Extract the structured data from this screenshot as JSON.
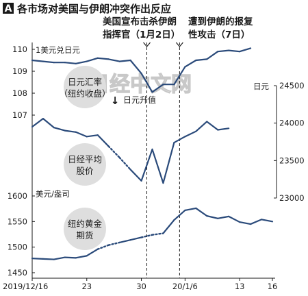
{
  "header": {
    "badge": "A",
    "title": "各市场对美国与伊朗冲突作出反应"
  },
  "events": [
    {
      "line1": "美国宣布击杀伊朗",
      "line2": "指挥官（1月2日）",
      "x_index": 10.5
    },
    {
      "line1": "遭到伊朗的报复",
      "line2": "性攻击（7日）",
      "x_index": 13.5
    }
  ],
  "watermark": "日经中文网",
  "x_axis": {
    "tick_labels": [
      "2019/12/16",
      "23",
      "30",
      "20/1/6",
      "13",
      "16"
    ],
    "tick_index": [
      0,
      5,
      10,
      14,
      19,
      22
    ]
  },
  "chart_data": [
    {
      "type": "line",
      "name": "日元汇率（纽约收盘）",
      "title": "1美元兑日元",
      "ylabel": "1美元兑日元",
      "axis_side": "left",
      "ylim": [
        107,
        110
      ],
      "yticks": [
        107,
        108,
        109,
        110
      ],
      "note_arrow": "↓",
      "note": "日元升值",
      "circle_label": [
        "日元汇率",
        "（纽约收盘）"
      ],
      "x_index": [
        0,
        1,
        2,
        3,
        4,
        5,
        6,
        7,
        8,
        9,
        10,
        11,
        12,
        13,
        14,
        15,
        16,
        17,
        18,
        19,
        20,
        21,
        22
      ],
      "values": [
        109.5,
        109.45,
        109.4,
        109.4,
        109.35,
        109.45,
        109.6,
        109.55,
        109.45,
        109.5,
        108.9,
        108.05,
        108.4,
        108.4,
        109.2,
        109.5,
        109.55,
        109.9,
        109.95,
        109.9,
        110.05,
        null,
        null
      ],
      "dashed_from_index": null,
      "color": "#2a4a7a"
    },
    {
      "type": "line",
      "name": "日经平均股价",
      "ylabel": "日元",
      "axis_side": "right",
      "ylim": [
        23000,
        24500
      ],
      "yticks": [
        23000,
        23500,
        24000,
        24500
      ],
      "circle_label": [
        "日经平均",
        "股价"
      ],
      "x_index": [
        0,
        1,
        2,
        3,
        4,
        5,
        6,
        7,
        8,
        9,
        10,
        11,
        12,
        13,
        14,
        15,
        16,
        17,
        18,
        19,
        20,
        21
      ],
      "values": [
        23950,
        24060,
        23940,
        23900,
        23880,
        23820,
        23840,
        23690,
        23540,
        23380,
        23230,
        23650,
        23200,
        23740,
        23820,
        23890,
        24020,
        23910,
        23930,
        null,
        null,
        null
      ],
      "dashed_segments": [
        [
          7,
          9
        ]
      ],
      "color": "#2a4a7a"
    },
    {
      "type": "line",
      "name": "纽约黄金期货",
      "title": "美元/盎司",
      "ylabel": "美元/盎司",
      "axis_side": "left",
      "ylim": [
        1450,
        1600
      ],
      "yticks": [
        1450,
        1500,
        1550,
        1600
      ],
      "circle_label": [
        "纽约黄金",
        "期货"
      ],
      "x_index": [
        0,
        1,
        2,
        3,
        4,
        5,
        6,
        7,
        8,
        9,
        10,
        11,
        12,
        13,
        14,
        15,
        16,
        17,
        18,
        19,
        20,
        21,
        22
      ],
      "values": [
        1478,
        1477,
        1476,
        1480,
        1479,
        1483,
        1496,
        1504,
        1509,
        1514,
        1519,
        1524,
        1527,
        1553,
        1572,
        1576,
        1561,
        1556,
        1560,
        1549,
        1545,
        1554,
        1550
      ],
      "dashed_segments": [
        [
          6,
          8
        ],
        [
          10,
          12
        ]
      ],
      "color": "#2a4a7a"
    }
  ]
}
